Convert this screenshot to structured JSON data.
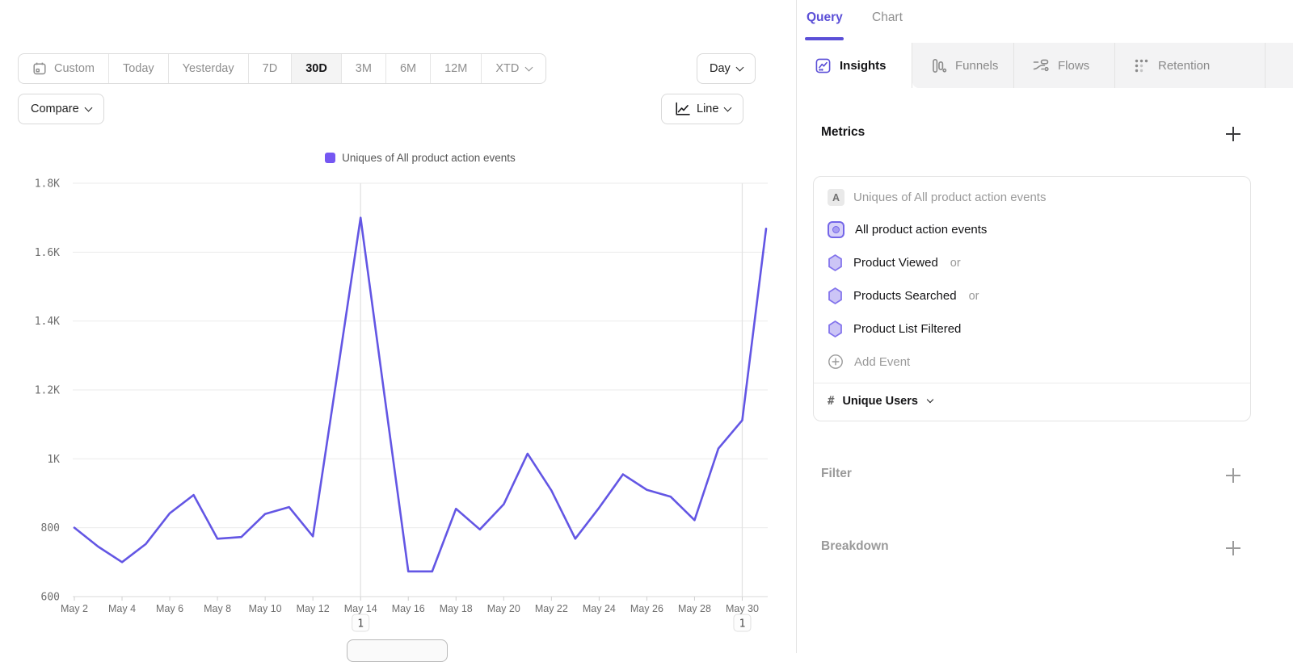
{
  "toolbar": {
    "ranges": [
      {
        "label": "Custom"
      },
      {
        "label": "Today"
      },
      {
        "label": "Yesterday"
      },
      {
        "label": "7D"
      },
      {
        "label": "30D",
        "selected": true
      },
      {
        "label": "3M"
      },
      {
        "label": "6M"
      },
      {
        "label": "12M"
      },
      {
        "label": "XTD"
      }
    ],
    "granularity": "Day",
    "compare_label": "Compare",
    "chart_type": "Line"
  },
  "chart_data": {
    "type": "line",
    "legend": "Uniques of All product action events",
    "line_color": "#6356E4",
    "swatch_color": "#7557F2",
    "ylim": [
      600,
      1800
    ],
    "y_ticks": [
      {
        "v": 600,
        "label": "600"
      },
      {
        "v": 800,
        "label": "800"
      },
      {
        "v": 1000,
        "label": "1K"
      },
      {
        "v": 1200,
        "label": "1.2K"
      },
      {
        "v": 1400,
        "label": "1.4K"
      },
      {
        "v": 1600,
        "label": "1.6K"
      },
      {
        "v": 1800,
        "label": "1.8K"
      }
    ],
    "x_label_every": 2,
    "categories": [
      "May 2",
      "May 3",
      "May 4",
      "May 5",
      "May 6",
      "May 7",
      "May 8",
      "May 9",
      "May 10",
      "May 11",
      "May 12",
      "May 13",
      "May 14",
      "May 15",
      "May 16",
      "May 17",
      "May 18",
      "May 19",
      "May 20",
      "May 21",
      "May 22",
      "May 23",
      "May 24",
      "May 25",
      "May 26",
      "May 27",
      "May 28",
      "May 29",
      "May 30",
      "May 31"
    ],
    "values": [
      800,
      745,
      700,
      753,
      842,
      895,
      768,
      773,
      840,
      860,
      775,
      1235,
      1700,
      1185,
      673,
      673,
      855,
      795,
      868,
      1015,
      908,
      768,
      858,
      955,
      910,
      890,
      822,
      1030,
      1112,
      1668
    ],
    "annotations": [
      {
        "index": 12,
        "label": "1"
      },
      {
        "index": 28,
        "label": "1"
      }
    ]
  },
  "panel": {
    "header_tabs": [
      {
        "label": "Query",
        "active": true
      },
      {
        "label": "Chart",
        "active": false
      }
    ],
    "report_tabs": [
      {
        "label": "Insights",
        "active": true
      },
      {
        "label": "Funnels",
        "active": false
      },
      {
        "label": "Flows",
        "active": false
      },
      {
        "label": "Retention",
        "active": false
      }
    ],
    "metrics": {
      "title": "Metrics",
      "series_letter": "A",
      "series_title": "Uniques of All product action events",
      "events": [
        {
          "label": "All product action events",
          "suffix": "",
          "icon": "custom-event"
        },
        {
          "label": "Product Viewed",
          "suffix": "or",
          "icon": "event-hexagon"
        },
        {
          "label": "Products Searched",
          "suffix": "or",
          "icon": "event-hexagon"
        },
        {
          "label": "Product List Filtered",
          "suffix": "",
          "icon": "event-hexagon"
        }
      ],
      "add_event_label": "Add Event",
      "aggregation": {
        "symbol": "#",
        "label": "Unique Users"
      }
    },
    "sections": [
      {
        "label": "Filter"
      },
      {
        "label": "Breakdown"
      }
    ]
  }
}
